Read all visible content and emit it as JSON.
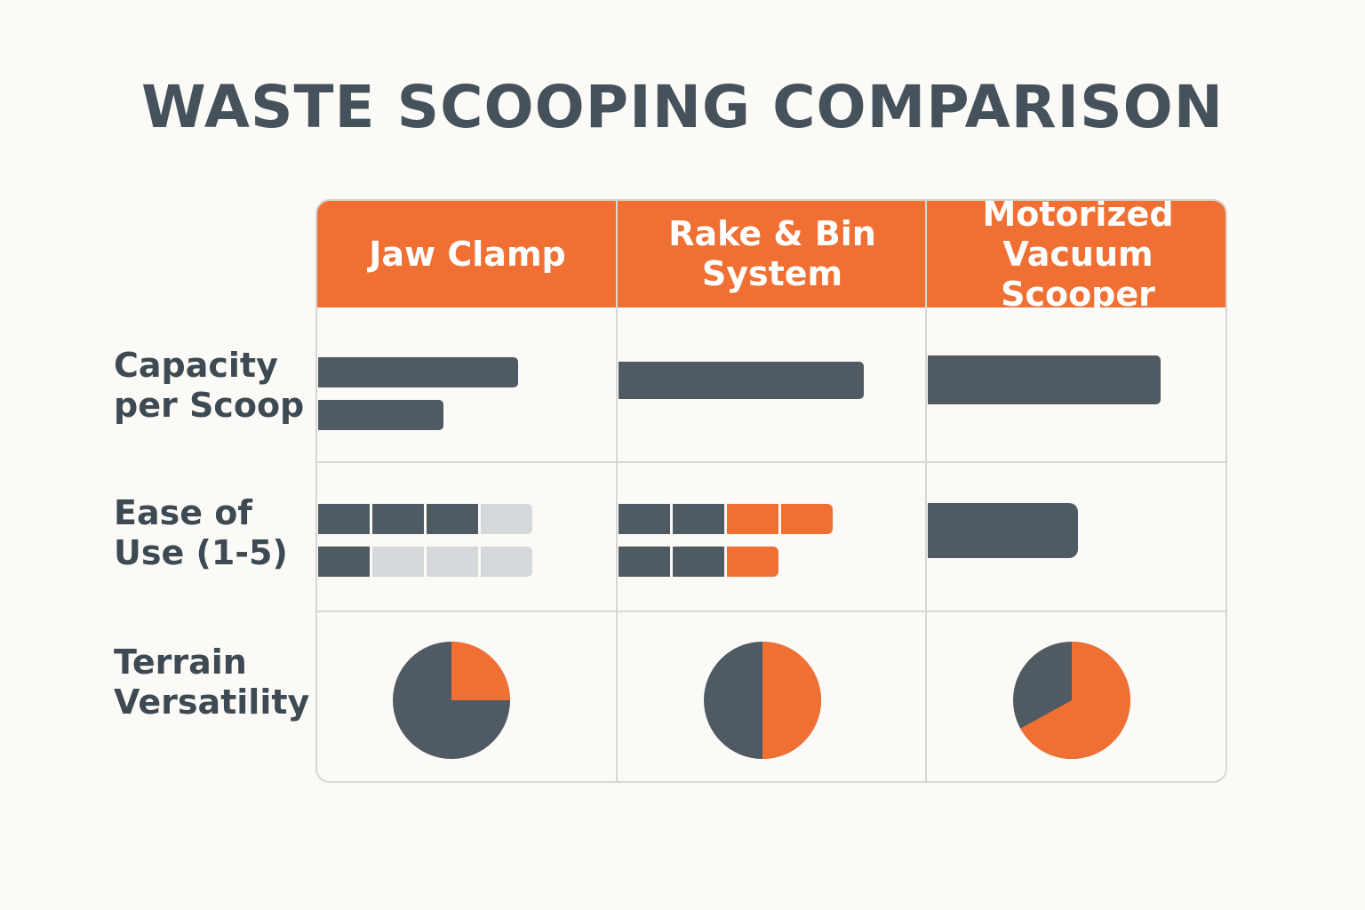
{
  "title": "WASTE SCOOPING COMPARISON",
  "colors": {
    "dark": "#4f5a63",
    "accent": "#f07034",
    "empty": "#d5d8da"
  },
  "chart_data": {
    "type": "table",
    "title": "WASTE SCOOPING COMPARISON",
    "columns": [
      "Jaw Clamp",
      "Rake & Bin System",
      "Motorized Vacuum Scooper"
    ],
    "column_lines": [
      [
        "Jaw Clamp"
      ],
      [
        "Rake & Bin",
        "System"
      ],
      [
        "Motorized",
        "Vacuum Scooper"
      ]
    ],
    "rows": [
      {
        "label": [
          "Capacity",
          "per Scoop"
        ],
        "kind": "bar",
        "values": [
          [
            67,
            42
          ],
          [
            82
          ],
          [
            78
          ]
        ],
        "scale_max": 100
      },
      {
        "label": [
          "Ease of",
          "Use (1-5)"
        ],
        "kind": "segments",
        "values": [
          [
            {
              "dark": 3,
              "accent": 0,
              "empty": 1
            },
            {
              "dark": 1,
              "accent": 0,
              "empty": 3
            }
          ],
          [
            {
              "dark": 2,
              "accent": 2,
              "empty": 0
            },
            {
              "dark": 2,
              "accent": 1,
              "empty": 0
            }
          ],
          [
            {
              "solid": 50
            }
          ]
        ]
      },
      {
        "label": [
          "Terrain",
          "Versatility"
        ],
        "kind": "pie",
        "values": [
          0.25,
          0.5,
          0.67
        ]
      }
    ]
  }
}
